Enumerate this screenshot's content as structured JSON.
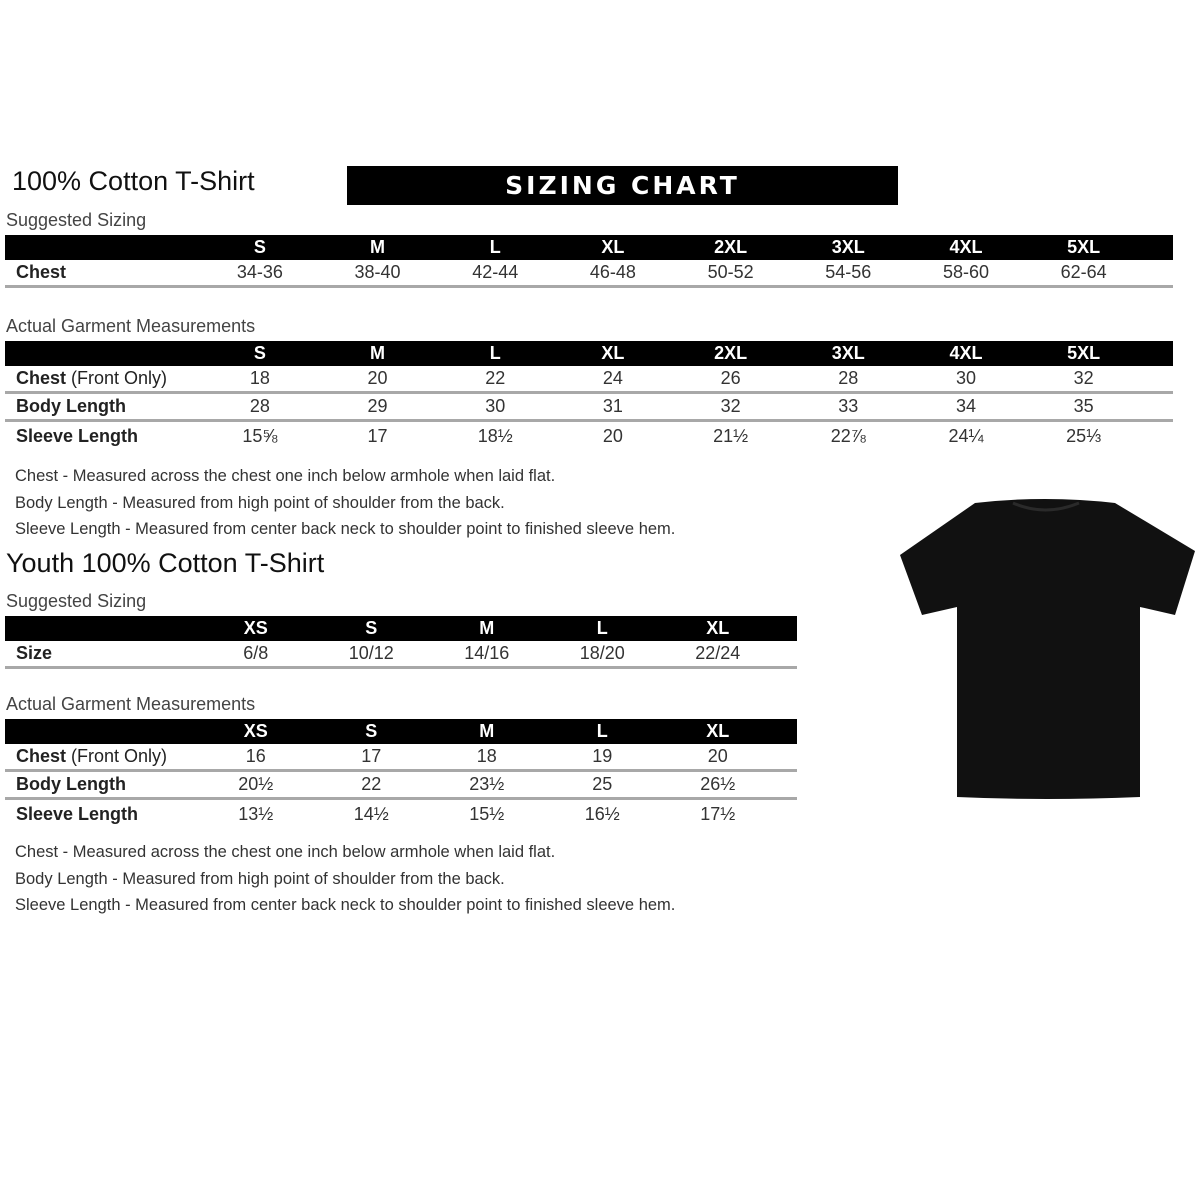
{
  "adult": {
    "title": "100% Cotton T-Shirt",
    "banner": "SIZING CHART",
    "suggested_label": "Suggested Sizing",
    "sizes": [
      "S",
      "M",
      "L",
      "XL",
      "2XL",
      "3XL",
      "4XL",
      "5XL"
    ],
    "suggested_rows": [
      {
        "label": "Chest",
        "label_extra": "",
        "values": [
          "34-36",
          "38-40",
          "42-44",
          "46-48",
          "50-52",
          "54-56",
          "58-60",
          "62-64"
        ]
      }
    ],
    "actual_label": "Actual Garment Measurements",
    "actual_rows": [
      {
        "label": "Chest",
        "label_extra": " (Front Only)",
        "values": [
          "18",
          "20",
          "22",
          "24",
          "26",
          "28",
          "30",
          "32"
        ]
      },
      {
        "label": "Body Length",
        "label_extra": "",
        "values": [
          "28",
          "29",
          "30",
          "31",
          "32",
          "33",
          "34",
          "35"
        ]
      },
      {
        "label": "Sleeve Length",
        "label_extra": "",
        "values": [
          "15⅝",
          "17",
          "18½",
          "20",
          "21½",
          "22⅞",
          "24¼",
          "25⅓"
        ]
      }
    ],
    "notes": [
      "Chest - Measured across the chest one inch below armhole when laid flat.",
      "Body Length - Measured from high point of shoulder from the back.",
      "Sleeve Length - Measured from center back neck to shoulder point to finished sleeve hem."
    ]
  },
  "youth": {
    "title": "Youth 100% Cotton T-Shirt",
    "suggested_label": "Suggested Sizing",
    "sizes": [
      "XS",
      "S",
      "M",
      "L",
      "XL"
    ],
    "suggested_rows": [
      {
        "label": "Size",
        "label_extra": "",
        "values": [
          "6/8",
          "10/12",
          "14/16",
          "18/20",
          "22/24"
        ]
      }
    ],
    "actual_label": "Actual Garment Measurements",
    "actual_rows": [
      {
        "label": "Chest",
        "label_extra": " (Front Only)",
        "values": [
          "16",
          "17",
          "18",
          "19",
          "20"
        ]
      },
      {
        "label": "Body Length",
        "label_extra": "",
        "values": [
          "20½",
          "22",
          "23½",
          "25",
          "26½"
        ]
      },
      {
        "label": "Sleeve Length",
        "label_extra": "",
        "values": [
          "13½",
          "14½",
          "15½",
          "16½",
          "17½"
        ]
      }
    ],
    "notes": [
      "Chest - Measured across the chest one inch below armhole when laid flat.",
      "Body Length - Measured from high point of shoulder from the back.",
      "Sleeve Length - Measured from center back neck to shoulder point to finished sleeve hem."
    ]
  },
  "image": {
    "icon": "black-tshirt-icon",
    "color": "#111111"
  }
}
